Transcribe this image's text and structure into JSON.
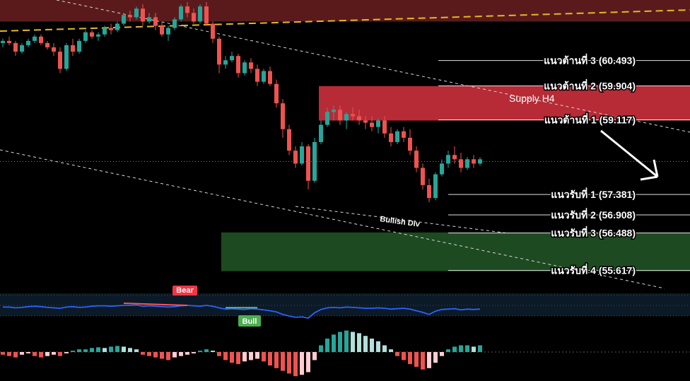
{
  "chart_data": [
    {
      "type": "candlestick",
      "title": "",
      "price_range": [
        55.2,
        61.9
      ],
      "grid": false,
      "colors": {
        "up": "#26a69a",
        "down": "#ef5350",
        "supply_zone": "#c62f3a",
        "demand_zone": "#1e4a22",
        "top_band": "#5a1a1c",
        "trendline": "#ffffff",
        "top_trendline": "#e5b822",
        "arrow": "#ffffff"
      },
      "series": [
        {
          "name": "",
          "values": [
            [
              60.9,
              61.0,
              60.8,
              60.95
            ],
            [
              60.95,
              61.05,
              60.85,
              60.9
            ],
            [
              60.9,
              60.95,
              60.6,
              60.7
            ],
            [
              60.7,
              60.9,
              60.65,
              60.85
            ],
            [
              60.85,
              61.0,
              60.8,
              60.95
            ],
            [
              60.95,
              61.1,
              60.9,
              61.05
            ],
            [
              61.05,
              61.1,
              60.85,
              60.9
            ],
            [
              60.9,
              60.95,
              60.75,
              60.8
            ],
            [
              60.8,
              60.9,
              60.6,
              60.7
            ],
            [
              60.7,
              60.8,
              60.2,
              60.3
            ],
            [
              60.3,
              60.9,
              60.25,
              60.85
            ],
            [
              60.85,
              61.0,
              60.6,
              60.7
            ],
            [
              60.7,
              61.0,
              60.65,
              60.95
            ],
            [
              60.95,
              61.2,
              60.9,
              61.15
            ],
            [
              61.15,
              61.2,
              61.0,
              61.05
            ],
            [
              61.05,
              61.15,
              60.95,
              61.1
            ],
            [
              61.1,
              61.3,
              61.05,
              61.25
            ],
            [
              61.25,
              61.35,
              61.1,
              61.2
            ],
            [
              61.2,
              61.4,
              61.15,
              61.35
            ],
            [
              61.35,
              61.6,
              61.3,
              61.55
            ],
            [
              61.55,
              61.65,
              61.4,
              61.5
            ],
            [
              61.5,
              61.75,
              61.45,
              61.7
            ],
            [
              61.7,
              61.8,
              61.3,
              61.4
            ],
            [
              61.4,
              61.6,
              61.35,
              61.5
            ],
            [
              61.5,
              61.6,
              61.2,
              61.3
            ],
            [
              61.3,
              61.4,
              61.05,
              61.1
            ],
            [
              61.1,
              61.3,
              60.95,
              61.25
            ],
            [
              61.25,
              61.5,
              61.2,
              61.45
            ],
            [
              61.45,
              61.8,
              61.4,
              61.75
            ],
            [
              61.75,
              61.85,
              61.5,
              61.6
            ],
            [
              61.6,
              61.7,
              61.35,
              61.4
            ],
            [
              61.4,
              61.8,
              61.35,
              61.75
            ],
            [
              61.75,
              61.85,
              61.3,
              61.35
            ],
            [
              61.35,
              61.4,
              60.9,
              61.0
            ],
            [
              61.0,
              61.05,
              60.2,
              60.4
            ],
            [
              60.4,
              60.6,
              60.3,
              60.5
            ],
            [
              60.5,
              60.7,
              60.45,
              60.6
            ],
            [
              60.6,
              60.65,
              60.1,
              60.2
            ],
            [
              60.2,
              60.5,
              60.15,
              60.45
            ],
            [
              60.45,
              60.55,
              60.2,
              60.3
            ],
            [
              60.3,
              60.4,
              59.9,
              60.0
            ],
            [
              60.0,
              60.3,
              59.95,
              60.25
            ],
            [
              60.25,
              60.35,
              59.9,
              59.95
            ],
            [
              59.95,
              60.05,
              59.4,
              59.5
            ],
            [
              59.5,
              59.6,
              58.7,
              58.9
            ],
            [
              58.9,
              59.0,
              58.3,
              58.4
            ],
            [
              58.4,
              58.5,
              58.0,
              58.1
            ],
            [
              58.1,
              58.6,
              58.05,
              58.5
            ],
            [
              58.5,
              58.55,
              57.5,
              57.7
            ],
            [
              57.7,
              58.7,
              57.65,
              58.6
            ],
            [
              58.6,
              59.1,
              58.55,
              59.0
            ],
            [
              59.0,
              59.4,
              58.95,
              59.3
            ],
            [
              59.3,
              59.45,
              59.1,
              59.35
            ],
            [
              59.35,
              59.45,
              59.0,
              59.1
            ],
            [
              59.1,
              59.3,
              58.9,
              59.25
            ],
            [
              59.25,
              59.4,
              59.1,
              59.2
            ],
            [
              59.2,
              59.35,
              59.0,
              59.1
            ],
            [
              59.1,
              59.2,
              58.9,
              59.05
            ],
            [
              59.05,
              59.2,
              58.85,
              58.95
            ],
            [
              58.95,
              59.15,
              58.8,
              59.1
            ],
            [
              59.1,
              59.2,
              58.7,
              58.8
            ],
            [
              58.8,
              58.95,
              58.5,
              58.6
            ],
            [
              58.6,
              58.9,
              58.55,
              58.85
            ],
            [
              58.85,
              58.95,
              58.6,
              58.7
            ],
            [
              58.7,
              58.9,
              58.3,
              58.4
            ],
            [
              58.4,
              58.5,
              57.9,
              58.0
            ],
            [
              58.0,
              58.1,
              57.5,
              57.6
            ],
            [
              57.6,
              57.75,
              57.2,
              57.3
            ],
            [
              57.3,
              57.9,
              57.25,
              57.85
            ],
            [
              57.85,
              58.2,
              57.8,
              58.1
            ],
            [
              58.1,
              58.4,
              58.0,
              58.3
            ],
            [
              58.3,
              58.5,
              58.1,
              58.2
            ],
            [
              58.2,
              58.35,
              57.9,
              58.0
            ],
            [
              58.0,
              58.25,
              57.95,
              58.2
            ],
            [
              58.2,
              58.3,
              58.0,
              58.1
            ],
            [
              58.1,
              58.25,
              58.05,
              58.2
            ]
          ]
        }
      ],
      "levels": [
        {
          "label": "แนวต้านที่ 3 (60.493)",
          "value": 60.493
        },
        {
          "label": "แนวต้านที่ 2 (59.904)",
          "value": 59.904
        },
        {
          "label": "แนวต้านที่ 1 (59.117)",
          "value": 59.117
        },
        {
          "label": "แนวรับที่ 1 (57.381)",
          "value": 57.381
        },
        {
          "label": "แนวรับที่ 2 (56.908)",
          "value": 56.908
        },
        {
          "label": "แนวรับที่ 3 (56.488)",
          "value": 56.488
        },
        {
          "label": "แนวรับที่ 4 (55.617)",
          "value": 55.617
        }
      ],
      "zones": [
        {
          "label": "Supply H4",
          "from": 59.1,
          "to": 59.9,
          "kind": "supply"
        },
        {
          "label": "",
          "from": 55.6,
          "to": 56.5,
          "kind": "demand"
        },
        {
          "label": "",
          "from": 61.4,
          "to": 61.9,
          "kind": "top"
        }
      ],
      "current_price": 58.15,
      "annotations": [
        {
          "label": "Bullish Div"
        }
      ],
      "projection": "down"
    },
    {
      "type": "line",
      "title": "",
      "ylim": [
        0,
        100
      ],
      "series": [
        {
          "name": "",
          "values": [
            58,
            58,
            56,
            57,
            59,
            60,
            59,
            57,
            56,
            55,
            58,
            59,
            57,
            58,
            60,
            61,
            61,
            60,
            61,
            62,
            62,
            63,
            60,
            61,
            60,
            59,
            58,
            59,
            61,
            62,
            61,
            60,
            62,
            60,
            56,
            53,
            54,
            53,
            52,
            54,
            53,
            51,
            49,
            46,
            40,
            36,
            33,
            34,
            31,
            44,
            52,
            56,
            57,
            56,
            58,
            57,
            56,
            55,
            55,
            56,
            55,
            53,
            54,
            55,
            53,
            49,
            45,
            40,
            48,
            52,
            53,
            54,
            51,
            53,
            52,
            53
          ]
        }
      ],
      "badges": [
        {
          "label": "Bear",
          "kind": "bear"
        },
        {
          "label": "Bull",
          "kind": "bull"
        }
      ],
      "colors": {
        "line": "#2962ff",
        "bear": "#f23645",
        "bull": "#4caf50",
        "div_bear": "#ff5252",
        "div_bull": "#66bb6a",
        "band": "#0b1a26"
      }
    },
    {
      "type": "histogram",
      "title": "",
      "series": [
        {
          "name": "",
          "values": [
            -0.2,
            -0.3,
            -0.4,
            -0.2,
            -0.1,
            -0.3,
            -0.4,
            -0.3,
            -0.2,
            -0.3,
            -0.1,
            0.1,
            0.2,
            0.2,
            0.3,
            0.35,
            0.3,
            0.4,
            0.45,
            0.4,
            0.3,
            0.2,
            -0.2,
            -0.3,
            -0.4,
            -0.5,
            -0.6,
            -0.4,
            -0.3,
            -0.2,
            -0.1,
            0.1,
            0.2,
            0.1,
            -0.3,
            -0.6,
            -0.8,
            -0.9,
            -0.7,
            -0.6,
            -0.5,
            -0.7,
            -1.0,
            -1.2,
            -1.4,
            -1.6,
            -1.8,
            -1.7,
            -1.5,
            -0.6,
            0.5,
            1.0,
            1.3,
            1.5,
            1.6,
            1.5,
            1.4,
            1.2,
            1.0,
            0.8,
            0.5,
            0.2,
            -0.3,
            -0.6,
            -0.9,
            -1.1,
            -1.3,
            -1.2,
            -0.8,
            -0.3,
            0.2,
            0.4,
            0.5,
            0.5,
            0.4,
            0.5
          ]
        }
      ],
      "colors": {
        "up_strong": "#26a69a",
        "up_weak": "#b2dfdb",
        "down_strong": "#ef5350",
        "down_weak": "#ffcdd2"
      }
    }
  ]
}
